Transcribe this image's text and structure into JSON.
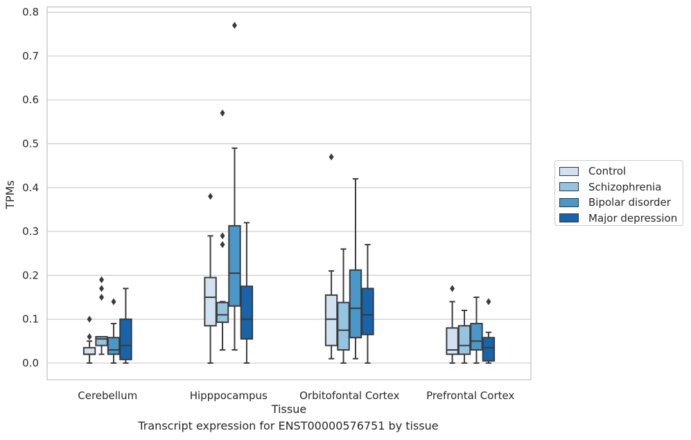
{
  "chart_data": {
    "type": "box",
    "ylabel": "TPMs",
    "xlabel": "Tissue",
    "caption": "Transcript expression for ENST00000576751 by tissue",
    "ylim": [
      -0.038,
      0.812
    ],
    "yticks": [
      "0.0",
      "0.1",
      "0.2",
      "0.3",
      "0.4",
      "0.5",
      "0.6",
      "0.7",
      "0.8"
    ],
    "ytick_values": [
      0.0,
      0.1,
      0.2,
      0.3,
      0.4,
      0.5,
      0.6,
      0.7,
      0.8
    ],
    "grid": "horizontal",
    "legend_position": "right",
    "categories": [
      "Cerebellum",
      "Hipppocampus",
      "Orbitofontal Cortex",
      "Prefrontal Cortex"
    ],
    "series": [
      {
        "name": "Control",
        "color": "#d0e1f2",
        "boxes": [
          {
            "whislo": 0.0,
            "q1": 0.02,
            "med": 0.02,
            "q3": 0.035,
            "whishi": 0.05,
            "fliers": [
              0.06,
              0.1
            ]
          },
          {
            "whislo": 0.0,
            "q1": 0.085,
            "med": 0.15,
            "q3": 0.195,
            "whishi": 0.29,
            "fliers": [
              0.38
            ]
          },
          {
            "whislo": 0.01,
            "q1": 0.04,
            "med": 0.1,
            "q3": 0.155,
            "whishi": 0.21,
            "fliers": [
              0.47
            ]
          },
          {
            "whislo": 0.0,
            "q1": 0.02,
            "med": 0.03,
            "q3": 0.08,
            "whishi": 0.14,
            "fliers": [
              0.17
            ]
          }
        ]
      },
      {
        "name": "Schizophrenia",
        "color": "#94c4df",
        "boxes": [
          {
            "whislo": 0.02,
            "q1": 0.04,
            "med": 0.055,
            "q3": 0.06,
            "whishi": 0.06,
            "fliers": [
              0.15,
              0.17,
              0.19
            ]
          },
          {
            "whislo": 0.03,
            "q1": 0.093,
            "med": 0.11,
            "q3": 0.138,
            "whishi": 0.14,
            "fliers": [
              0.27,
              0.29,
              0.57
            ]
          },
          {
            "whislo": 0.0,
            "q1": 0.03,
            "med": 0.075,
            "q3": 0.138,
            "whishi": 0.26,
            "fliers": []
          },
          {
            "whislo": 0.0,
            "q1": 0.02,
            "med": 0.04,
            "q3": 0.085,
            "whishi": 0.12,
            "fliers": []
          }
        ]
      },
      {
        "name": "Bipolar disorder",
        "color": "#4a98c9",
        "boxes": [
          {
            "whislo": 0.0,
            "q1": 0.02,
            "med": 0.03,
            "q3": 0.058,
            "whishi": 0.09,
            "fliers": [
              0.14
            ]
          },
          {
            "whislo": 0.03,
            "q1": 0.13,
            "med": 0.205,
            "q3": 0.313,
            "whishi": 0.49,
            "fliers": [
              0.77
            ]
          },
          {
            "whislo": 0.01,
            "q1": 0.058,
            "med": 0.125,
            "q3": 0.212,
            "whishi": 0.42,
            "fliers": []
          },
          {
            "whislo": 0.0,
            "q1": 0.03,
            "med": 0.05,
            "q3": 0.09,
            "whishi": 0.15,
            "fliers": []
          }
        ]
      },
      {
        "name": "Major depression",
        "color": "#1764ab",
        "boxes": [
          {
            "whislo": 0.0,
            "q1": 0.008,
            "med": 0.04,
            "q3": 0.1,
            "whishi": 0.17,
            "fliers": []
          },
          {
            "whislo": 0.0,
            "q1": 0.055,
            "med": 0.1,
            "q3": 0.175,
            "whishi": 0.32,
            "fliers": []
          },
          {
            "whislo": 0.0,
            "q1": 0.065,
            "med": 0.11,
            "q3": 0.17,
            "whishi": 0.27,
            "fliers": []
          },
          {
            "whislo": 0.0,
            "q1": 0.005,
            "med": 0.035,
            "q3": 0.058,
            "whishi": 0.07,
            "fliers": [
              0.14
            ]
          }
        ]
      }
    ]
  }
}
